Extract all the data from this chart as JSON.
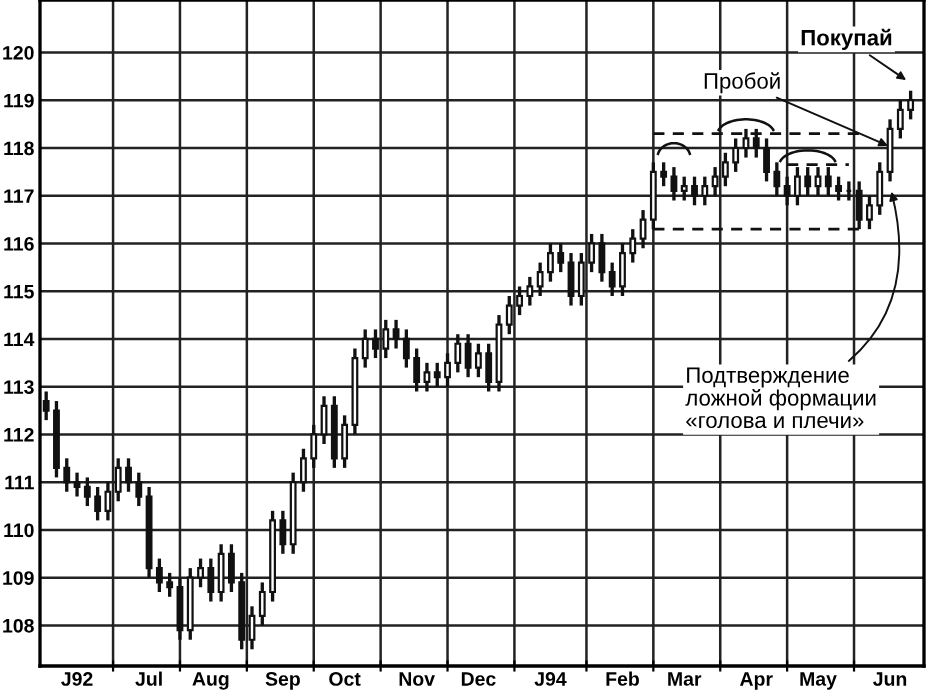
{
  "chart_data": {
    "type": "candlestick",
    "categories": [
      null,
      null,
      null,
      "J92",
      null,
      null,
      null,
      null,
      null,
      null,
      "Jul",
      null,
      null,
      null,
      null,
      null,
      "Aug",
      null,
      null,
      null,
      null,
      null,
      null,
      "Sep",
      null,
      null,
      null,
      null,
      null,
      "Oct",
      null,
      null,
      null,
      null,
      null,
      null,
      "Nov",
      null,
      null,
      null,
      null,
      null,
      "Dec",
      null,
      null,
      null,
      null,
      null,
      null,
      "J94",
      null,
      null,
      null,
      null,
      null,
      null,
      "Feb",
      null,
      null,
      null,
      null,
      null,
      "Mar",
      null,
      null,
      null,
      null,
      null,
      null,
      "Apr",
      null,
      null,
      null,
      null,
      null,
      "May",
      null,
      null,
      null,
      null,
      null,
      null,
      "Jun",
      null,
      null
    ],
    "ohlc": [
      [
        112.7,
        112.9,
        112.3,
        112.5
      ],
      [
        112.5,
        112.7,
        111.1,
        111.3
      ],
      [
        111.3,
        111.5,
        110.8,
        111.0
      ],
      [
        111.0,
        111.2,
        110.7,
        110.9
      ],
      [
        110.9,
        111.1,
        110.5,
        110.7
      ],
      [
        110.7,
        110.9,
        110.2,
        110.4
      ],
      [
        110.4,
        111.0,
        110.2,
        110.8
      ],
      [
        110.8,
        111.5,
        110.6,
        111.3
      ],
      [
        111.3,
        111.5,
        110.8,
        111.0
      ],
      [
        111.0,
        111.2,
        110.5,
        110.7
      ],
      [
        110.7,
        110.9,
        109.0,
        109.2
      ],
      [
        109.2,
        109.4,
        108.7,
        108.9
      ],
      [
        108.9,
        109.1,
        108.6,
        108.8
      ],
      [
        108.8,
        109.0,
        107.7,
        107.9
      ],
      [
        107.9,
        109.2,
        107.7,
        109.0
      ],
      [
        109.0,
        109.4,
        108.8,
        109.2
      ],
      [
        109.2,
        109.4,
        108.5,
        108.7
      ],
      [
        108.7,
        109.7,
        108.5,
        109.5
      ],
      [
        109.5,
        109.7,
        108.7,
        108.9
      ],
      [
        108.9,
        109.1,
        107.5,
        107.7
      ],
      [
        107.7,
        108.4,
        107.5,
        108.2
      ],
      [
        108.2,
        108.9,
        108.0,
        108.7
      ],
      [
        108.7,
        110.4,
        108.5,
        110.2
      ],
      [
        110.2,
        110.4,
        109.5,
        109.7
      ],
      [
        109.7,
        111.2,
        109.5,
        111.0
      ],
      [
        111.0,
        111.7,
        110.8,
        111.5
      ],
      [
        111.5,
        112.2,
        111.3,
        112.0
      ],
      [
        112.0,
        112.8,
        111.8,
        112.6
      ],
      [
        112.6,
        112.8,
        111.3,
        111.5
      ],
      [
        111.5,
        112.4,
        111.3,
        112.2
      ],
      [
        112.2,
        113.8,
        112.0,
        113.6
      ],
      [
        113.6,
        114.2,
        113.4,
        114.0
      ],
      [
        114.0,
        114.2,
        113.6,
        113.8
      ],
      [
        113.8,
        114.4,
        113.6,
        114.2
      ],
      [
        114.2,
        114.4,
        113.8,
        114.0
      ],
      [
        114.0,
        114.2,
        113.4,
        113.6
      ],
      [
        113.6,
        113.8,
        112.9,
        113.1
      ],
      [
        113.1,
        113.5,
        112.9,
        113.3
      ],
      [
        113.3,
        113.5,
        113.0,
        113.2
      ],
      [
        113.2,
        113.7,
        113.0,
        113.5
      ],
      [
        113.5,
        114.1,
        113.3,
        113.9
      ],
      [
        113.9,
        114.1,
        113.2,
        113.4
      ],
      [
        113.4,
        113.9,
        113.2,
        113.7
      ],
      [
        113.7,
        113.9,
        112.9,
        113.1
      ],
      [
        113.1,
        114.5,
        112.9,
        114.3
      ],
      [
        114.3,
        114.9,
        114.1,
        114.7
      ],
      [
        114.7,
        115.1,
        114.5,
        114.9
      ],
      [
        114.9,
        115.3,
        114.7,
        115.1
      ],
      [
        115.1,
        115.6,
        114.9,
        115.4
      ],
      [
        115.4,
        116.0,
        115.2,
        115.8
      ],
      [
        115.8,
        116.0,
        115.4,
        115.6
      ],
      [
        115.6,
        115.8,
        114.7,
        114.9
      ],
      [
        114.9,
        115.8,
        114.7,
        115.6
      ],
      [
        115.6,
        116.2,
        115.4,
        116.0
      ],
      [
        116.0,
        116.2,
        115.2,
        115.4
      ],
      [
        115.4,
        115.6,
        114.9,
        115.1
      ],
      [
        115.1,
        116.0,
        114.9,
        115.8
      ],
      [
        115.8,
        116.3,
        115.6,
        116.1
      ],
      [
        116.1,
        116.7,
        115.9,
        116.5
      ],
      [
        116.5,
        117.7,
        116.3,
        117.5
      ],
      [
        117.5,
        117.7,
        117.2,
        117.4
      ],
      [
        117.4,
        117.6,
        116.9,
        117.1
      ],
      [
        117.1,
        117.4,
        116.9,
        117.2
      ],
      [
        117.2,
        117.4,
        116.8,
        117.0
      ],
      [
        117.0,
        117.4,
        116.8,
        117.2
      ],
      [
        117.2,
        117.6,
        117.0,
        117.4
      ],
      [
        117.4,
        117.9,
        117.2,
        117.7
      ],
      [
        117.7,
        118.2,
        117.5,
        118.0
      ],
      [
        118.0,
        118.4,
        117.8,
        118.2
      ],
      [
        118.2,
        118.4,
        117.8,
        118.0
      ],
      [
        118.0,
        118.2,
        117.3,
        117.5
      ],
      [
        117.5,
        117.7,
        117.0,
        117.2
      ],
      [
        117.2,
        117.4,
        116.8,
        117.0
      ],
      [
        117.0,
        117.6,
        116.8,
        117.4
      ],
      [
        117.4,
        117.6,
        117.0,
        117.2
      ],
      [
        117.2,
        117.6,
        117.0,
        117.4
      ],
      [
        117.4,
        117.6,
        117.0,
        117.2
      ],
      [
        117.2,
        117.4,
        116.9,
        117.1
      ],
      [
        117.1,
        117.3,
        116.9,
        117.1
      ],
      [
        117.1,
        117.3,
        116.3,
        116.5
      ],
      [
        116.5,
        117.0,
        116.3,
        116.8
      ],
      [
        116.8,
        117.7,
        116.6,
        117.5
      ],
      [
        117.5,
        118.6,
        117.3,
        118.4
      ],
      [
        118.4,
        119.0,
        118.2,
        118.8
      ],
      [
        118.8,
        119.2,
        118.6,
        119.0
      ]
    ],
    "color": "#111111",
    "series": [
      {
        "type": "line",
        "color": "#111111",
        "line_style": "dashed",
        "values": [
          null,
          null,
          null,
          null,
          null,
          null,
          null,
          null,
          null,
          null,
          null,
          null,
          null,
          null,
          null,
          null,
          null,
          null,
          null,
          null,
          null,
          null,
          null,
          null,
          null,
          null,
          null,
          null,
          null,
          null,
          null,
          null,
          null,
          null,
          null,
          null,
          null,
          null,
          null,
          null,
          null,
          null,
          null,
          null,
          null,
          null,
          null,
          null,
          null,
          null,
          null,
          null,
          null,
          null,
          null,
          null,
          null,
          null,
          null,
          118.3,
          118.3,
          118.3,
          118.3,
          118.3,
          118.3,
          118.3,
          118.3,
          118.3,
          118.3,
          118.3,
          118.3,
          118.3,
          118.3,
          118.3,
          118.3,
          118.3,
          118.3,
          118.3,
          118.3,
          118.3,
          null,
          null,
          null,
          null,
          null
        ]
      },
      {
        "type": "line",
        "color": "#111111",
        "line_style": "dashed",
        "values": [
          null,
          null,
          null,
          null,
          null,
          null,
          null,
          null,
          null,
          null,
          null,
          null,
          null,
          null,
          null,
          null,
          null,
          null,
          null,
          null,
          null,
          null,
          null,
          null,
          null,
          null,
          null,
          null,
          null,
          null,
          null,
          null,
          null,
          null,
          null,
          null,
          null,
          null,
          null,
          null,
          null,
          null,
          null,
          null,
          null,
          null,
          null,
          null,
          null,
          null,
          null,
          null,
          null,
          null,
          null,
          null,
          null,
          null,
          null,
          null,
          null,
          null,
          null,
          null,
          null,
          null,
          null,
          null,
          null,
          null,
          null,
          null,
          117.65,
          117.65,
          117.65,
          117.65,
          117.65,
          117.65,
          117.65,
          null,
          null,
          null,
          null,
          null,
          null
        ]
      },
      {
        "type": "line",
        "color": "#111111",
        "line_style": "dashed",
        "values": [
          null,
          null,
          null,
          null,
          null,
          null,
          null,
          null,
          null,
          null,
          null,
          null,
          null,
          null,
          null,
          null,
          null,
          null,
          null,
          null,
          null,
          null,
          null,
          null,
          null,
          null,
          null,
          null,
          null,
          null,
          null,
          null,
          null,
          null,
          null,
          null,
          null,
          null,
          null,
          null,
          null,
          null,
          null,
          null,
          null,
          null,
          null,
          null,
          null,
          null,
          null,
          null,
          null,
          null,
          null,
          null,
          null,
          null,
          null,
          116.3,
          116.3,
          116.3,
          116.3,
          116.3,
          116.3,
          116.3,
          116.3,
          116.3,
          116.3,
          116.3,
          116.3,
          116.3,
          116.3,
          116.3,
          116.3,
          116.3,
          116.3,
          116.3,
          116.3,
          116.3,
          null,
          null,
          null,
          null,
          null
        ]
      }
    ],
    "ylim": [
      107.15,
      121.1
    ],
    "yticks": [
      108,
      109,
      110,
      111,
      112,
      113,
      114,
      115,
      116,
      117,
      118,
      119,
      120
    ],
    "grid": true,
    "annotations": [
      "Покупай",
      {
        "text": "Пробой",
        "y": 118.0
      },
      {
        "text": "Подтверждение\nложной формации\n«голова и плечи»",
        "x": "Jun",
        "y": 117.2
      }
    ]
  }
}
